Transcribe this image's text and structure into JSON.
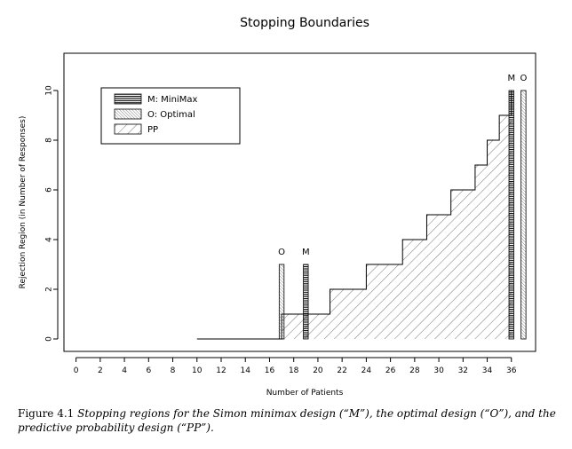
{
  "chart_data": {
    "type": "area",
    "title": "Stopping Boundaries",
    "xlabel": "Number of Patients",
    "ylabel": "Rejection Region (in Number of Responses)",
    "xlim": [
      -1,
      38
    ],
    "ylim": [
      -0.5,
      11.5
    ],
    "xticks": [
      0,
      2,
      4,
      6,
      8,
      10,
      12,
      14,
      16,
      18,
      20,
      22,
      24,
      26,
      28,
      30,
      32,
      34,
      36
    ],
    "yticks": [
      0,
      2,
      4,
      6,
      8,
      10
    ],
    "grid": false,
    "legend_position": "top-left",
    "legend": [
      {
        "key": "minimax",
        "label": "M: MiniMax"
      },
      {
        "key": "optimal",
        "label": "O: Optimal"
      },
      {
        "key": "pp",
        "label": "PP"
      }
    ],
    "pp_boundary": {
      "name": "PP",
      "x": [
        10,
        17,
        18,
        19,
        20,
        21,
        22,
        23,
        24,
        25,
        26,
        27,
        28,
        29,
        30,
        31,
        32,
        33,
        34,
        35,
        36
      ],
      "y": [
        0,
        1,
        1,
        1,
        1,
        2,
        2,
        2,
        3,
        3,
        3,
        4,
        4,
        5,
        5,
        6,
        6,
        7,
        8,
        9,
        10
      ]
    },
    "minimax_bars": [
      {
        "x": 19,
        "y": 3,
        "label": "M"
      },
      {
        "x": 36,
        "y": 10,
        "label": "M"
      }
    ],
    "optimal_bars": [
      {
        "x": 17,
        "y": 3,
        "label": "O"
      },
      {
        "x": 37,
        "y": 10,
        "label": "O"
      }
    ]
  },
  "caption": {
    "prefix": "Figure 4.1",
    "text": "Stopping regions for the Simon minimax design (“M”), the optimal design (“O”), and the predictive probability design (“PP”)."
  }
}
